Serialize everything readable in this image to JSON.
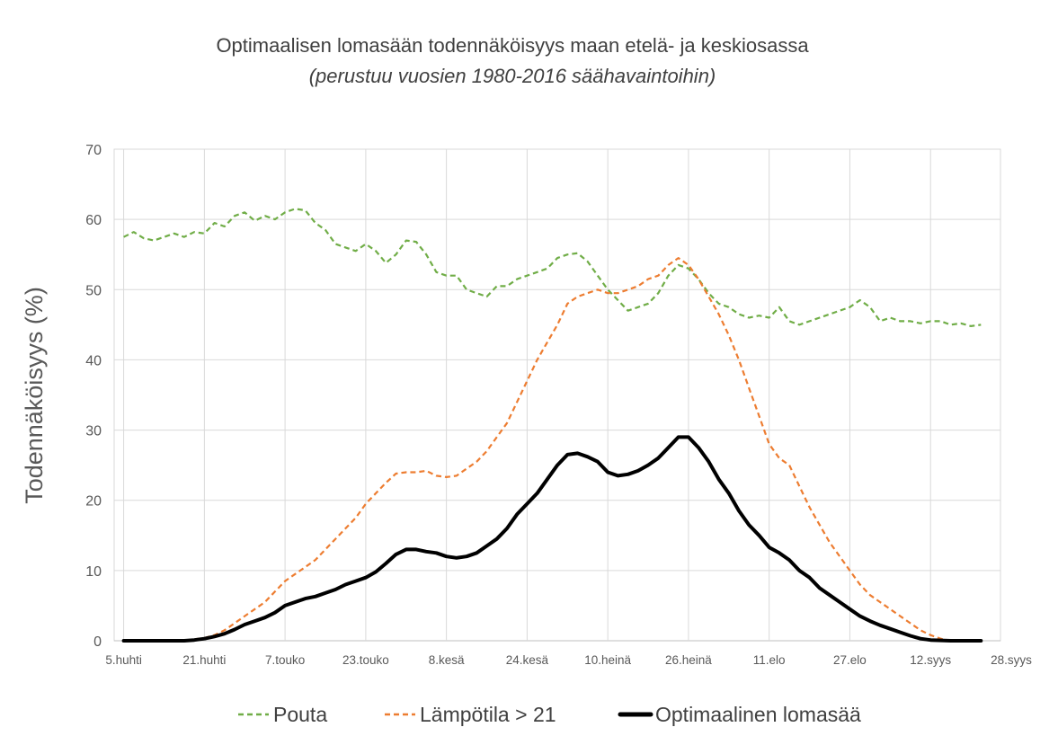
{
  "chart_data": {
    "type": "line",
    "title": "Optimaalisen lomasään todennäköisyys maan etelä- ja keskiosassa",
    "subtitle": "(perustuu vuosien 1980-2016 säähavaintoihin)",
    "ylabel": "Todennäköisyys (%)",
    "xlabel": "",
    "ylim": [
      0,
      70
    ],
    "yticks": [
      "0",
      "10",
      "20",
      "30",
      "40",
      "50",
      "60",
      "70"
    ],
    "xlim": [
      0,
      176
    ],
    "xticks": [
      {
        "x": 0,
        "label": "5.huhti"
      },
      {
        "x": 16,
        "label": "21.huhti"
      },
      {
        "x": 32,
        "label": "7.touko"
      },
      {
        "x": 48,
        "label": "23.touko"
      },
      {
        "x": 64,
        "label": "8.kesä"
      },
      {
        "x": 80,
        "label": "24.kesä"
      },
      {
        "x": 96,
        "label": "10.heinä"
      },
      {
        "x": 112,
        "label": "26.heinä"
      },
      {
        "x": 128,
        "label": "11.elo"
      },
      {
        "x": 144,
        "label": "27.elo"
      },
      {
        "x": 160,
        "label": "12.syys"
      },
      {
        "x": 176,
        "label": "28.syys"
      }
    ],
    "grid": true,
    "legend_position": "bottom",
    "series": [
      {
        "name": "Pouta",
        "color": "#70AD47",
        "style": "dashed",
        "points": [
          [
            0,
            57.5
          ],
          [
            2,
            58.2
          ],
          [
            4,
            57.3
          ],
          [
            6,
            57
          ],
          [
            8,
            57.5
          ],
          [
            10,
            58
          ],
          [
            12,
            57.5
          ],
          [
            14,
            58.2
          ],
          [
            16,
            58
          ],
          [
            18,
            59.5
          ],
          [
            20,
            59
          ],
          [
            22,
            60.5
          ],
          [
            24,
            61
          ],
          [
            26,
            59.8
          ],
          [
            28,
            60.5
          ],
          [
            30,
            60
          ],
          [
            32,
            61
          ],
          [
            34,
            61.5
          ],
          [
            36,
            61.3
          ],
          [
            38,
            59.5
          ],
          [
            40,
            58.5
          ],
          [
            42,
            56.5
          ],
          [
            44,
            56
          ],
          [
            46,
            55.5
          ],
          [
            48,
            56.5
          ],
          [
            50,
            55.5
          ],
          [
            52,
            53.8
          ],
          [
            54,
            55
          ],
          [
            56,
            57
          ],
          [
            58,
            56.8
          ],
          [
            60,
            55
          ],
          [
            62,
            52.5
          ],
          [
            64,
            52
          ],
          [
            66,
            52
          ],
          [
            68,
            50
          ],
          [
            70,
            49.5
          ],
          [
            72,
            49
          ],
          [
            74,
            50.5
          ],
          [
            76,
            50.5
          ],
          [
            78,
            51.5
          ],
          [
            80,
            52
          ],
          [
            82,
            52.5
          ],
          [
            84,
            53
          ],
          [
            86,
            54.5
          ],
          [
            88,
            55
          ],
          [
            90,
            55.2
          ],
          [
            92,
            54
          ],
          [
            94,
            52
          ],
          [
            96,
            50
          ],
          [
            98,
            48.5
          ],
          [
            100,
            47
          ],
          [
            102,
            47.5
          ],
          [
            104,
            48
          ],
          [
            106,
            49.5
          ],
          [
            108,
            52
          ],
          [
            110,
            53.5
          ],
          [
            112,
            53
          ],
          [
            114,
            51.5
          ],
          [
            116,
            49.5
          ],
          [
            118,
            48
          ],
          [
            120,
            47.5
          ],
          [
            122,
            46.5
          ],
          [
            124,
            46
          ],
          [
            126,
            46.3
          ],
          [
            128,
            46
          ],
          [
            130,
            47.5
          ],
          [
            132,
            45.5
          ],
          [
            134,
            45
          ],
          [
            136,
            45.5
          ],
          [
            138,
            46
          ],
          [
            140,
            46.5
          ],
          [
            142,
            47
          ],
          [
            144,
            47.5
          ],
          [
            146,
            48.5
          ],
          [
            148,
            47.5
          ],
          [
            150,
            45.5
          ],
          [
            152,
            46
          ],
          [
            154,
            45.5
          ],
          [
            156,
            45.5
          ],
          [
            158,
            45.2
          ],
          [
            160,
            45.5
          ],
          [
            162,
            45.5
          ],
          [
            164,
            45
          ],
          [
            166,
            45.2
          ],
          [
            168,
            44.8
          ],
          [
            170,
            45
          ]
        ]
      },
      {
        "name": "Lämpötila > 21",
        "color": "#ED7D31",
        "style": "dashed",
        "points": [
          [
            0,
            0
          ],
          [
            4,
            0
          ],
          [
            8,
            0
          ],
          [
            12,
            0
          ],
          [
            14,
            0.2
          ],
          [
            16,
            0.4
          ],
          [
            18,
            0.8
          ],
          [
            20,
            1.5
          ],
          [
            22,
            2.5
          ],
          [
            24,
            3.5
          ],
          [
            26,
            4.5
          ],
          [
            28,
            5.5
          ],
          [
            30,
            7
          ],
          [
            32,
            8.5
          ],
          [
            34,
            9.5
          ],
          [
            36,
            10.5
          ],
          [
            38,
            11.5
          ],
          [
            40,
            13
          ],
          [
            42,
            14.5
          ],
          [
            44,
            16
          ],
          [
            46,
            17.5
          ],
          [
            48,
            19.5
          ],
          [
            50,
            21
          ],
          [
            52,
            22.5
          ],
          [
            54,
            23.8
          ],
          [
            56,
            24
          ],
          [
            58,
            24
          ],
          [
            60,
            24.2
          ],
          [
            62,
            23.5
          ],
          [
            64,
            23.3
          ],
          [
            66,
            23.5
          ],
          [
            68,
            24.5
          ],
          [
            70,
            25.5
          ],
          [
            72,
            27
          ],
          [
            74,
            29
          ],
          [
            76,
            31
          ],
          [
            78,
            34
          ],
          [
            80,
            37
          ],
          [
            82,
            40
          ],
          [
            84,
            42.5
          ],
          [
            86,
            45
          ],
          [
            88,
            48
          ],
          [
            90,
            49
          ],
          [
            92,
            49.5
          ],
          [
            94,
            50
          ],
          [
            96,
            49.5
          ],
          [
            98,
            49.5
          ],
          [
            100,
            50
          ],
          [
            102,
            50.5
          ],
          [
            104,
            51.5
          ],
          [
            106,
            52
          ],
          [
            108,
            53.5
          ],
          [
            110,
            54.5
          ],
          [
            112,
            53.5
          ],
          [
            114,
            51.5
          ],
          [
            116,
            49
          ],
          [
            118,
            46.5
          ],
          [
            120,
            43.5
          ],
          [
            122,
            40
          ],
          [
            124,
            36
          ],
          [
            126,
            32
          ],
          [
            128,
            28
          ],
          [
            130,
            26
          ],
          [
            132,
            25
          ],
          [
            134,
            22
          ],
          [
            136,
            19
          ],
          [
            138,
            16.5
          ],
          [
            140,
            14
          ],
          [
            142,
            12
          ],
          [
            144,
            10
          ],
          [
            146,
            8
          ],
          [
            148,
            6.5
          ],
          [
            150,
            5.5
          ],
          [
            152,
            4.5
          ],
          [
            154,
            3.5
          ],
          [
            156,
            2.5
          ],
          [
            158,
            1.5
          ],
          [
            160,
            0.8
          ],
          [
            162,
            0.3
          ],
          [
            164,
            0
          ],
          [
            170,
            0
          ]
        ]
      },
      {
        "name": "Optimaalinen lomasää",
        "color": "#000000",
        "style": "solid",
        "points": [
          [
            0,
            0
          ],
          [
            4,
            0
          ],
          [
            8,
            0
          ],
          [
            12,
            0
          ],
          [
            14,
            0.1
          ],
          [
            16,
            0.3
          ],
          [
            18,
            0.6
          ],
          [
            20,
            1
          ],
          [
            22,
            1.6
          ],
          [
            24,
            2.3
          ],
          [
            26,
            2.8
          ],
          [
            28,
            3.3
          ],
          [
            30,
            4
          ],
          [
            32,
            5
          ],
          [
            34,
            5.5
          ],
          [
            36,
            6
          ],
          [
            38,
            6.3
          ],
          [
            40,
            6.8
          ],
          [
            42,
            7.3
          ],
          [
            44,
            8
          ],
          [
            46,
            8.5
          ],
          [
            48,
            9
          ],
          [
            50,
            9.8
          ],
          [
            52,
            11
          ],
          [
            54,
            12.3
          ],
          [
            56,
            13
          ],
          [
            58,
            13
          ],
          [
            60,
            12.7
          ],
          [
            62,
            12.5
          ],
          [
            64,
            12
          ],
          [
            66,
            11.8
          ],
          [
            68,
            12
          ],
          [
            70,
            12.5
          ],
          [
            72,
            13.5
          ],
          [
            74,
            14.5
          ],
          [
            76,
            16
          ],
          [
            78,
            18
          ],
          [
            80,
            19.5
          ],
          [
            82,
            21
          ],
          [
            84,
            23
          ],
          [
            86,
            25
          ],
          [
            88,
            26.5
          ],
          [
            90,
            26.7
          ],
          [
            92,
            26.2
          ],
          [
            94,
            25.5
          ],
          [
            96,
            24
          ],
          [
            98,
            23.5
          ],
          [
            100,
            23.7
          ],
          [
            102,
            24.2
          ],
          [
            104,
            25
          ],
          [
            106,
            26
          ],
          [
            108,
            27.5
          ],
          [
            110,
            29
          ],
          [
            112,
            29
          ],
          [
            114,
            27.5
          ],
          [
            116,
            25.5
          ],
          [
            118,
            23
          ],
          [
            120,
            21
          ],
          [
            122,
            18.5
          ],
          [
            124,
            16.5
          ],
          [
            126,
            15
          ],
          [
            128,
            13.3
          ],
          [
            130,
            12.5
          ],
          [
            132,
            11.5
          ],
          [
            134,
            10
          ],
          [
            136,
            9
          ],
          [
            138,
            7.5
          ],
          [
            140,
            6.5
          ],
          [
            142,
            5.5
          ],
          [
            144,
            4.5
          ],
          [
            146,
            3.5
          ],
          [
            148,
            2.8
          ],
          [
            150,
            2.2
          ],
          [
            152,
            1.7
          ],
          [
            154,
            1.2
          ],
          [
            156,
            0.7
          ],
          [
            158,
            0.3
          ],
          [
            160,
            0.1
          ],
          [
            164,
            0
          ],
          [
            170,
            0
          ]
        ]
      }
    ]
  }
}
